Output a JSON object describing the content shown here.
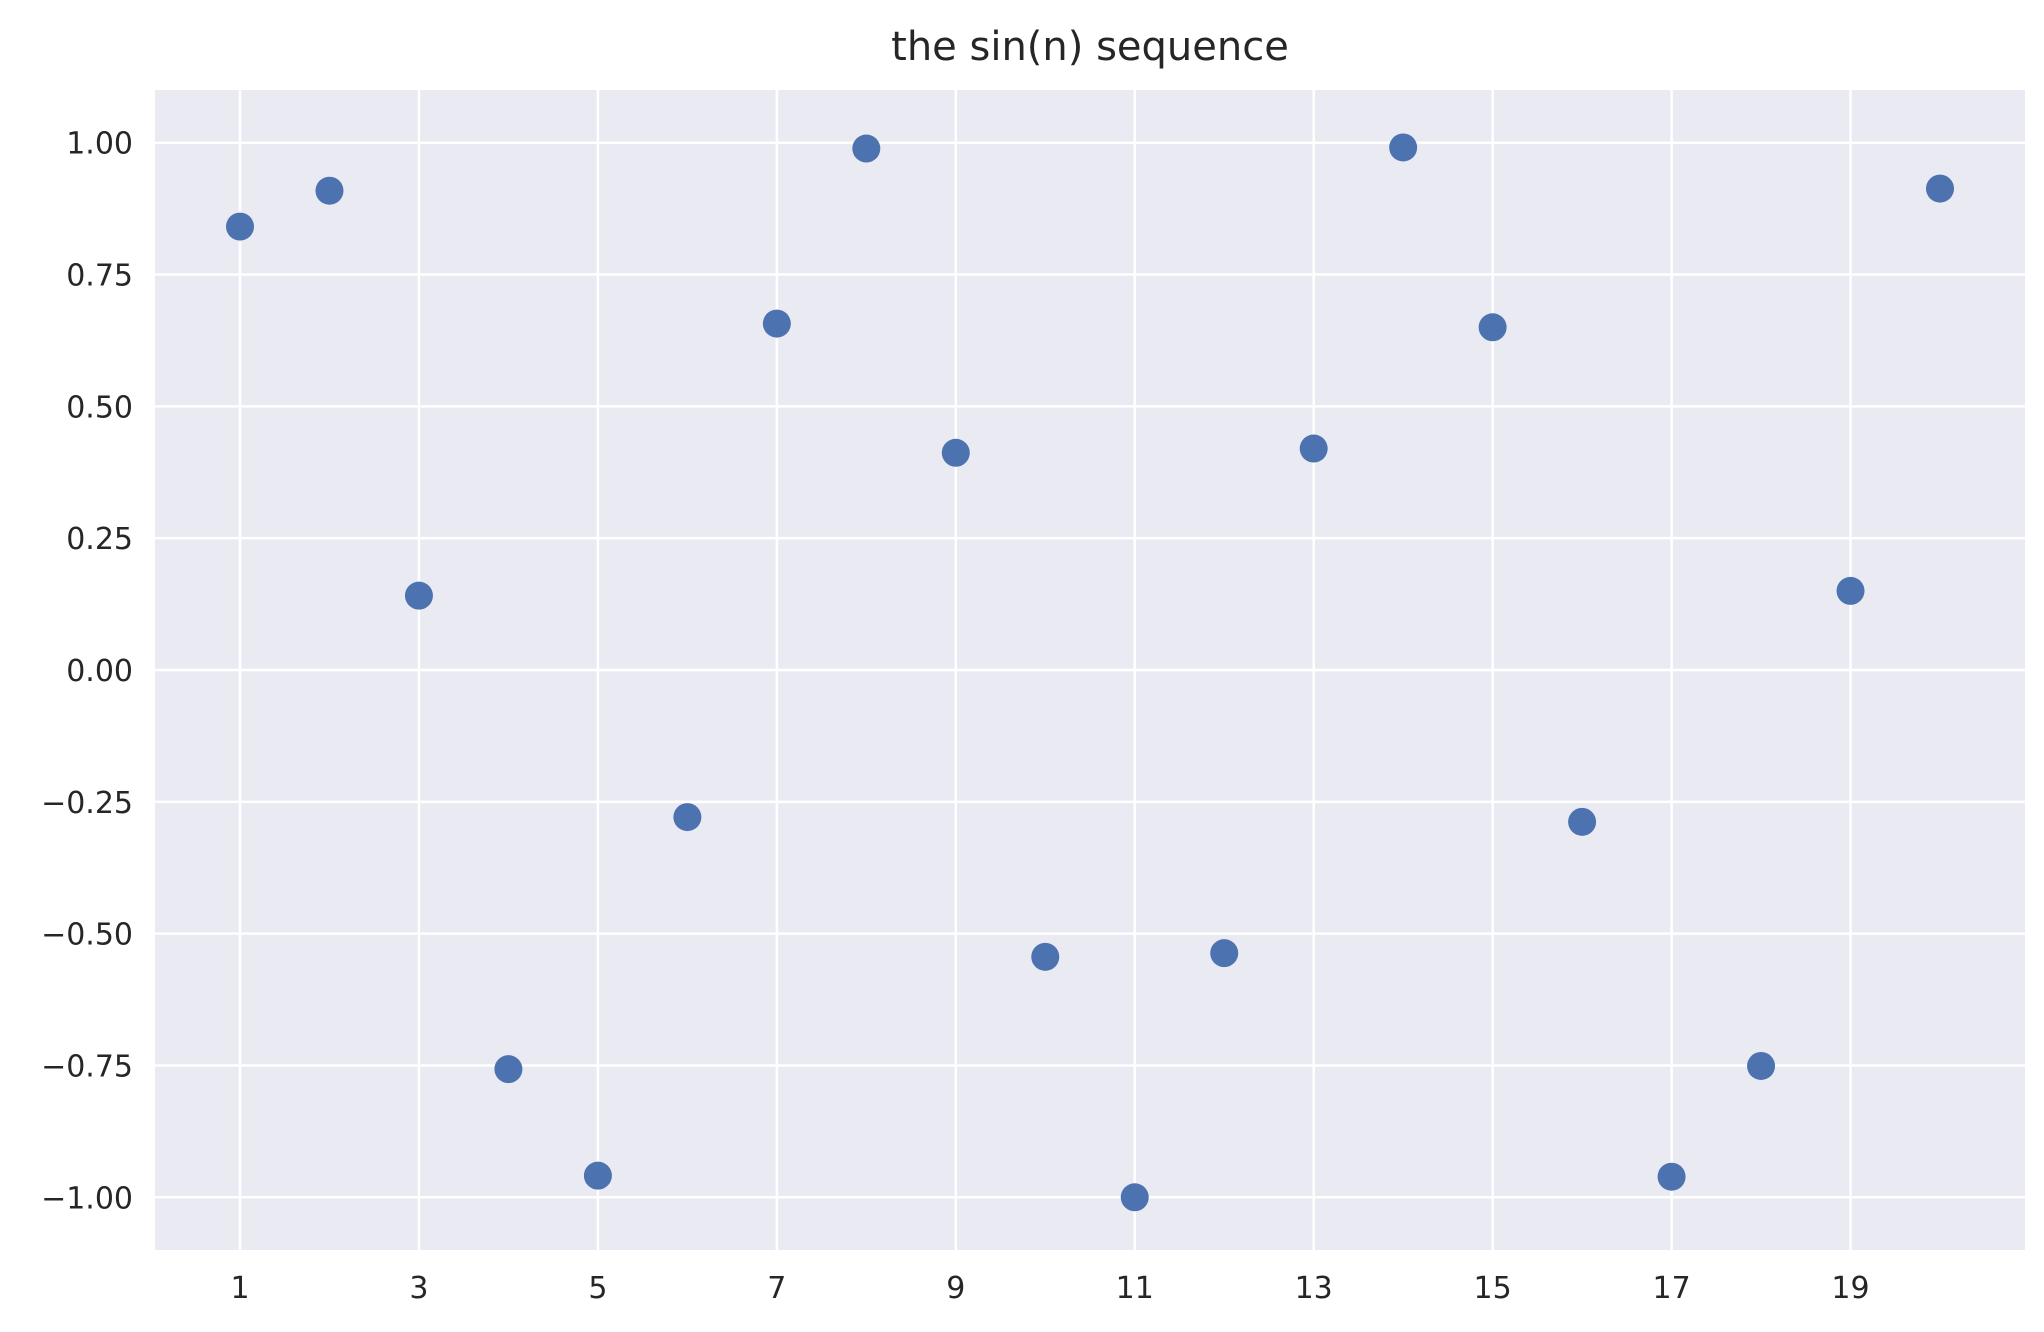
{
  "chart_data": {
    "type": "scatter",
    "title": "the sin(n) sequence",
    "xlabel": "",
    "ylabel": "",
    "xlim": [
      0.05,
      20.95
    ],
    "ylim": [
      -1.1,
      1.1
    ],
    "grid": true,
    "legend": "none",
    "colors": {
      "background": "#eaeaf2",
      "grid": "#ffffff",
      "points": "#4c72b0",
      "text": "#262626"
    },
    "x_ticks": [
      1,
      3,
      5,
      7,
      9,
      11,
      13,
      15,
      17,
      19
    ],
    "x_tick_labels": [
      "1",
      "3",
      "5",
      "7",
      "9",
      "11",
      "13",
      "15",
      "17",
      "19"
    ],
    "y_ticks": [
      1.0,
      0.75,
      0.5,
      0.25,
      0.0,
      -0.25,
      -0.5,
      -0.75,
      -1.0
    ],
    "y_tick_labels": [
      "1.00",
      "0.75",
      "0.50",
      "0.25",
      "0.00",
      "−0.25",
      "−0.50",
      "−0.75",
      "−1.00"
    ],
    "x": [
      1,
      2,
      3,
      4,
      5,
      6,
      7,
      8,
      9,
      10,
      11,
      12,
      13,
      14,
      15,
      16,
      17,
      18,
      19,
      20
    ],
    "y": [
      0.841,
      0.909,
      0.141,
      -0.757,
      -0.959,
      -0.279,
      0.657,
      0.989,
      0.412,
      -0.544,
      -1.0,
      -0.537,
      0.42,
      0.991,
      0.65,
      -0.288,
      -0.961,
      -0.751,
      0.15,
      0.913
    ]
  }
}
